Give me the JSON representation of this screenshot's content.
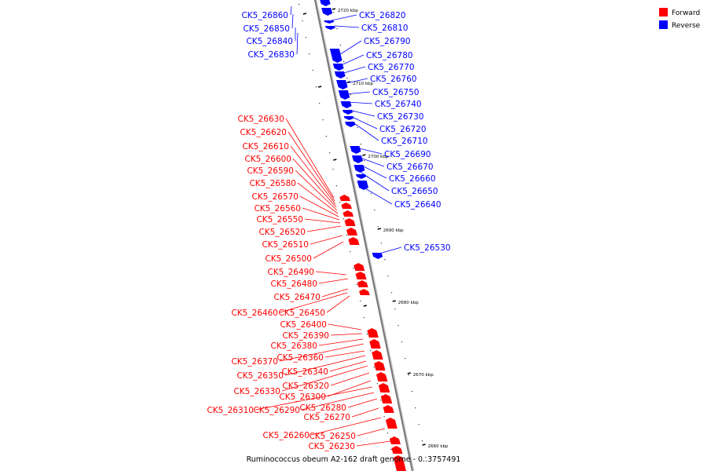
{
  "caption": "Ruminococcus obeum A2-162 draft genome - 0..3757491",
  "colors": {
    "forward": "#ff0000",
    "reverse": "#0000ff",
    "backbone": "#888888"
  },
  "legend": [
    {
      "label": "Forward",
      "color": "#ff0000"
    },
    {
      "label": "Reverse",
      "color": "#0000ff"
    }
  ],
  "scale_ticks": [
    "2720 kbp",
    "2710 kbp",
    "2700 kbp",
    "2690 kbp",
    "2680 kbp",
    "2670 kbp",
    "2660 kbp"
  ],
  "reverse_labels_left": [
    "CK5_26860",
    "CK5_26850",
    "CK5_26840",
    "CK5_26830"
  ],
  "reverse_labels_right": [
    "CK5_26820",
    "CK5_26810",
    "CK5_26790",
    "CK5_26780",
    "CK5_26770",
    "CK5_26760",
    "CK5_26750",
    "CK5_26740",
    "CK5_26730",
    "CK5_26720",
    "CK5_26710",
    "CK5_26690",
    "CK5_26670",
    "CK5_26660",
    "CK5_26650",
    "CK5_26640",
    "CK5_26530"
  ],
  "forward_labels": [
    "CK5_26630",
    "CK5_26620",
    "CK5_26610",
    "CK5_26600",
    "CK5_26590",
    "CK5_26580",
    "CK5_26570",
    "CK5_26560",
    "CK5_26550",
    "CK5_26520",
    "CK5_26510",
    "CK5_26500",
    "CK5_26490",
    "CK5_26480",
    "CK5_26470",
    "CK5_26460",
    "CK5_26450",
    "CK5_26400",
    "CK5_26390",
    "CK5_26380",
    "CK5_26370",
    "CK5_26360",
    "CK5_26350",
    "CK5_26340",
    "CK5_26330",
    "CK5_26320",
    "CK5_26300",
    "CK5_26310",
    "CK5_26290",
    "CK5_26280",
    "CK5_26270",
    "CK5_26260",
    "CK5_26250",
    "CK5_26230"
  ]
}
